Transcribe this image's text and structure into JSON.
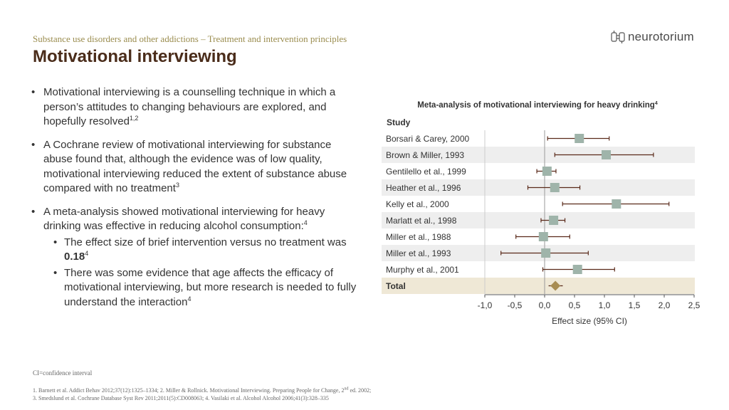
{
  "header": {
    "breadcrumb": "Substance use disorders and other addictions – Treatment and intervention principles",
    "title": "Motivational interviewing",
    "logo_text": "neurotorium"
  },
  "bullets": [
    {
      "text": "Motivational interviewing is a counselling technique in which a person’s attitudes to changing behaviours are explored, and hopefully resolved",
      "sup": "1,2"
    },
    {
      "text": "A Cochrane review of motivational interviewing for substance abuse found that, although the evidence was of low quality, motivational interviewing reduced the extent of substance abuse compared with no treatment",
      "sup": "3"
    },
    {
      "text": "A meta-analysis showed motivational interviewing for heavy drinking was effective in reducing alcohol consumption:",
      "sup": "4",
      "sub": [
        {
          "text": "The effect size of brief intervention versus no treatment was ",
          "bold": "0.18",
          "sup": "4"
        },
        {
          "text": "There was some evidence that age affects the efficacy of motivational interviewing, but more research is needed to fully understand the interaction",
          "sup": "4"
        }
      ]
    }
  ],
  "footnotes": {
    "abbrev": "CI=confidence interval",
    "ref1_before": "1. Barnett et al. Addict Behav 2012;37(12):1325–1334; 2. Miller & Rollnick. Motivational Interviewing. Preparing People for Change, 2",
    "ref1_sup": "nd",
    "ref1_after": " ed. 2002;",
    "ref2": "3. Smedslund et al. Cochrane Database Syst Rev 2011;2011(5):CD008063; 4. Vasilaki et al. Alcohol Alcohol 2006;41(3):328–335"
  },
  "chart_data": {
    "type": "forest",
    "title": "Meta-analysis of motivational interviewing for heavy drinking",
    "title_sup": "4",
    "column_header": "Study",
    "xlabel": "Effect size (95% CI)",
    "xlim": [
      -1.0,
      2.5
    ],
    "xticks": [
      "-1,0",
      "-0,5",
      "0,0",
      "0,5",
      "1,0",
      "1,5",
      "2,0",
      "2,5"
    ],
    "xtick_values": [
      -1.0,
      -0.5,
      0.0,
      0.5,
      1.0,
      1.5,
      2.0,
      2.5
    ],
    "studies": [
      {
        "name": "Borsari & Carey, 2000",
        "effect": 0.58,
        "ci": [
          0.05,
          1.08
        ]
      },
      {
        "name": "Brown & Miller, 1993",
        "effect": 1.03,
        "ci": [
          0.17,
          1.82
        ]
      },
      {
        "name": "Gentilello et al., 1999",
        "effect": 0.04,
        "ci": [
          -0.13,
          0.19
        ]
      },
      {
        "name": "Heather et al., 1996",
        "effect": 0.17,
        "ci": [
          -0.28,
          0.59
        ]
      },
      {
        "name": "Kelly et al., 2000",
        "effect": 1.2,
        "ci": [
          0.3,
          2.08
        ]
      },
      {
        "name": "Marlatt et al., 1998",
        "effect": 0.15,
        "ci": [
          -0.06,
          0.34
        ]
      },
      {
        "name": "Miller et al., 1988",
        "effect": -0.02,
        "ci": [
          -0.48,
          0.42
        ]
      },
      {
        "name": "Miller et al., 1993",
        "effect": 0.02,
        "ci": [
          -0.73,
          0.73
        ]
      },
      {
        "name": "Murphy et al., 2001",
        "effect": 0.55,
        "ci": [
          -0.03,
          1.17
        ]
      }
    ],
    "total": {
      "name": "Total",
      "effect": 0.18,
      "ci": [
        0.09,
        0.28
      ]
    },
    "colors": {
      "marker": "#9fb4aa",
      "line": "#5a2a1a",
      "stripe": "#eeeeee",
      "total_band": "#efe8d6",
      "diamond": "#a88d52",
      "axis": "#555555"
    }
  }
}
